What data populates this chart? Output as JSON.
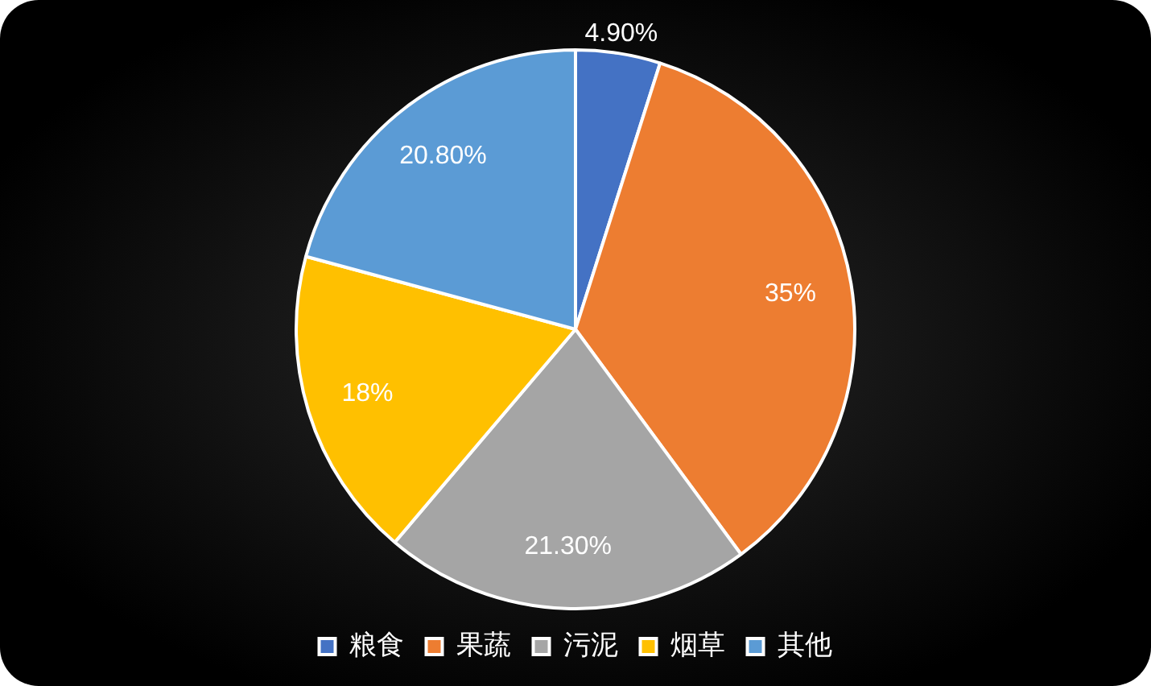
{
  "chart_data": {
    "type": "pie",
    "categories": [
      "粮食",
      "果蔬",
      "污泥",
      "烟草",
      "其他"
    ],
    "values": [
      4.9,
      35,
      21.3,
      18,
      20.8
    ],
    "colors": [
      "#4472c4",
      "#ed7d31",
      "#a5a5a5",
      "#ffc000",
      "#5b9bd5"
    ],
    "value_labels": [
      "4.90%",
      "35%",
      "21.30%",
      "18%",
      "20.80%"
    ],
    "legend": "bottom"
  }
}
